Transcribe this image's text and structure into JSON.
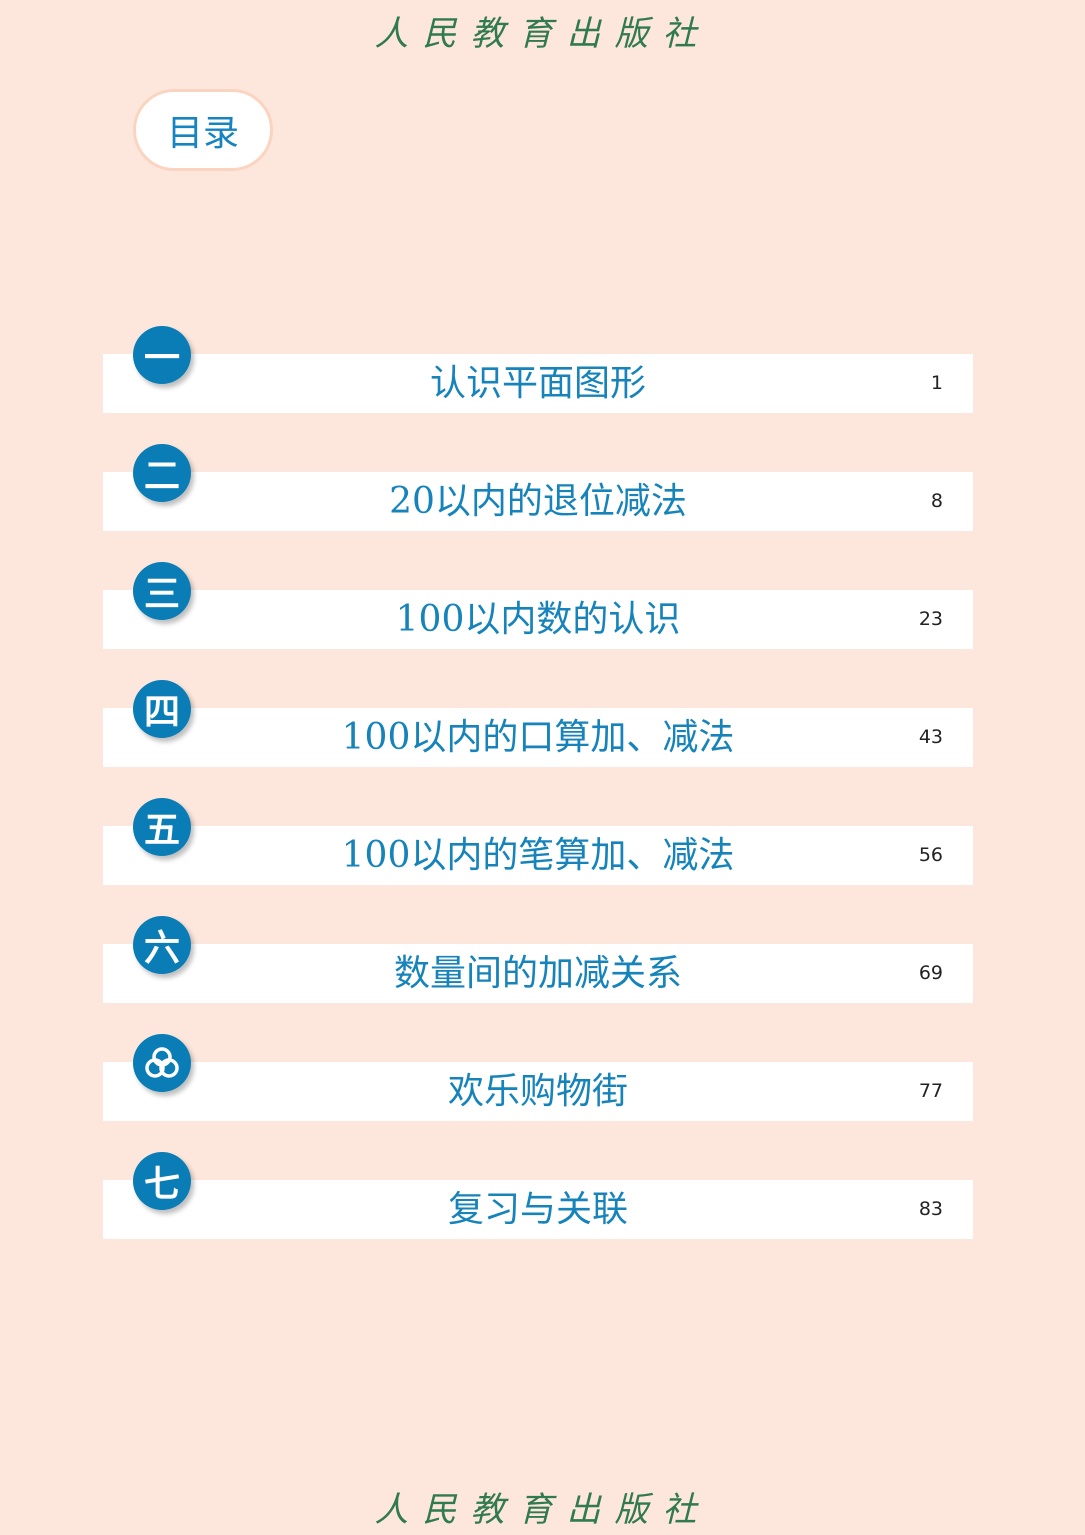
{
  "publisher_logo": "人民教育出版社",
  "toc_title": "目录",
  "chapters": [
    {
      "number": "一",
      "title": "认识平面图形",
      "page": "1"
    },
    {
      "number": "二",
      "title": "20以内的退位减法",
      "page": "8"
    },
    {
      "number": "三",
      "title": "100以内数的认识",
      "page": "23"
    },
    {
      "number": "四",
      "title": "100以内的口算加、减法",
      "page": "43"
    },
    {
      "number": "五",
      "title": "100以内的笔算加、减法",
      "page": "56"
    },
    {
      "number": "六",
      "title": "数量间的加减关系",
      "page": "69"
    },
    {
      "number": "",
      "icon": "trefoil-icon",
      "title": "欢乐购物街",
      "page": "77"
    },
    {
      "number": "七",
      "title": "复习与关联",
      "page": "83"
    }
  ],
  "colors": {
    "background": "#fde6db",
    "accent": "#0a7db6",
    "title_text": "#1683bb",
    "logo": "#2f7a4e"
  }
}
